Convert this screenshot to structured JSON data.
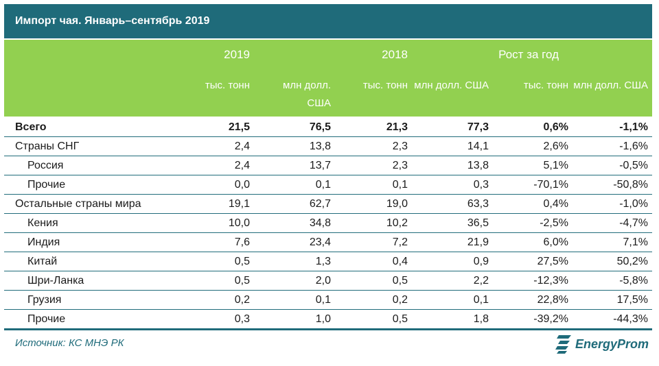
{
  "title": "Импорт чая. Январь–сентябрь 2019",
  "headers": {
    "years": [
      "2019",
      "2018",
      "Рост за год"
    ],
    "units": [
      "тыс. тонн",
      "млн долл. США",
      "тыс. тонн",
      "млн долл. США",
      "тыс. тонн",
      "млн долл. США"
    ]
  },
  "rows": [
    {
      "name": "Всего",
      "values": [
        "21,5",
        "76,5",
        "21,3",
        "77,3",
        "0,6%",
        "-1,1%"
      ]
    },
    {
      "name": "Страны СНГ",
      "values": [
        "2,4",
        "13,8",
        "2,3",
        "14,1",
        "2,6%",
        "-1,6%"
      ]
    },
    {
      "name": "Россия",
      "values": [
        "2,4",
        "13,7",
        "2,3",
        "13,8",
        "5,1%",
        "-0,5%"
      ]
    },
    {
      "name": "Прочие",
      "values": [
        "0,0",
        "0,1",
        "0,1",
        "0,3",
        "-70,1%",
        "-50,8%"
      ]
    },
    {
      "name": "Остальные страны мира",
      "values": [
        "19,1",
        "62,7",
        "19,0",
        "63,3",
        "0,4%",
        "-1,0%"
      ]
    },
    {
      "name": "Кения",
      "values": [
        "10,0",
        "34,8",
        "10,2",
        "36,5",
        "-2,5%",
        "-4,7%"
      ]
    },
    {
      "name": "Индия",
      "values": [
        "7,6",
        "23,4",
        "7,2",
        "21,9",
        "6,0%",
        "7,1%"
      ]
    },
    {
      "name": "Китай",
      "values": [
        "0,5",
        "1,3",
        "0,4",
        "0,9",
        "27,5%",
        "50,2%"
      ]
    },
    {
      "name": "Шри-Ланка",
      "values": [
        "0,5",
        "2,0",
        "0,5",
        "2,2",
        "-12,3%",
        "-5,8%"
      ]
    },
    {
      "name": "Грузия",
      "values": [
        "0,2",
        "0,1",
        "0,2",
        "0,1",
        "22,8%",
        "17,5%"
      ]
    },
    {
      "name": "Прочие",
      "values": [
        "0,3",
        "1,0",
        "0,5",
        "1,8",
        "-39,2%",
        "-44,3%"
      ]
    }
  ],
  "source": "Источник: КС МНЭ РК",
  "logo": {
    "text": "EnergyProm",
    "color": "#1f6b7a"
  },
  "colors": {
    "title_bg": "#1f6b7a",
    "header_bg": "#92d050"
  }
}
